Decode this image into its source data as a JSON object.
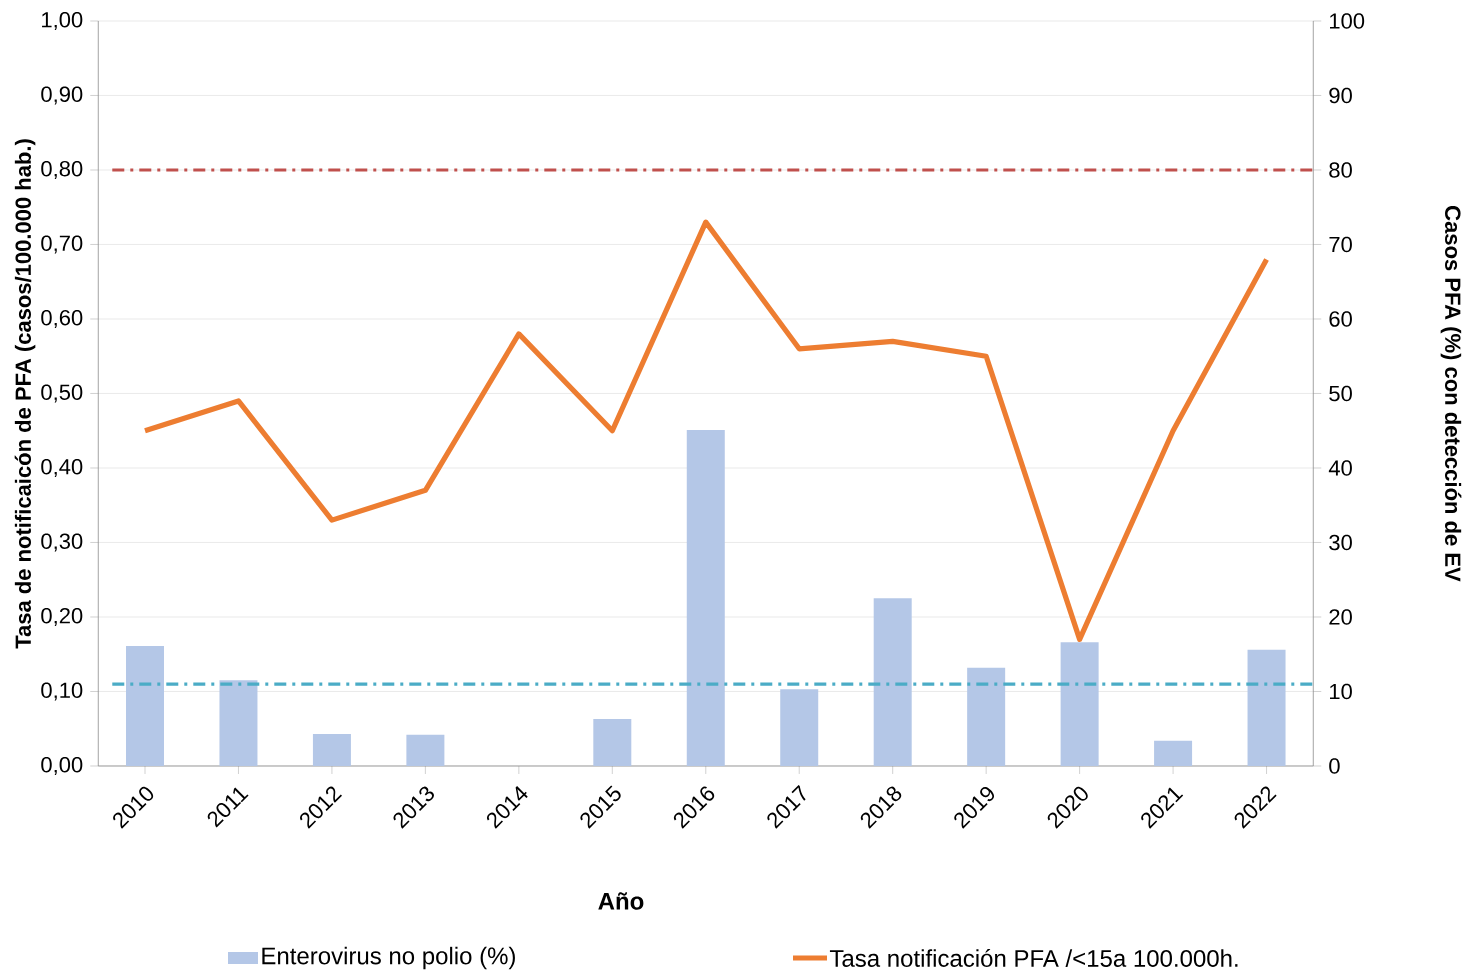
{
  "chart_data": {
    "type": "bar",
    "xlabel": "Año",
    "ylabel": "Tasa de  notificaicón de PFA (casos/100.000 hab.)",
    "y2label": "Casos PFA (%) con detección de EV",
    "categories": [
      "2010",
      "2011",
      "2012",
      "2013",
      "2014",
      "2015",
      "2016",
      "2017",
      "2018",
      "2019",
      "2020",
      "2021",
      "2022"
    ],
    "series": [
      {
        "name": "Enterovirus no polio (%)",
        "axis": "y2",
        "color": "#b4c7e7",
        "values": [
          16.1,
          11.5,
          4.3,
          4.2,
          0,
          6.3,
          45.1,
          10.3,
          22.5,
          13.2,
          16.6,
          3.4,
          15.6
        ]
      },
      {
        "name": "Tasa notificación PFA /<15a 100.000h.",
        "type": "line",
        "axis": "y",
        "color": "#ed7d31",
        "values": [
          0.45,
          0.49,
          0.33,
          0.37,
          0.58,
          0.45,
          0.73,
          0.56,
          0.57,
          0.55,
          0.17,
          0.45,
          0.68
        ]
      }
    ],
    "ylim": [
      0,
      1
    ],
    "yticks": [
      {
        "value": 0,
        "label": "0,00"
      },
      {
        "value": 0.1,
        "label": "0,10"
      },
      {
        "value": 0.2,
        "label": "0,20"
      },
      {
        "value": 0.3,
        "label": "0,30"
      },
      {
        "value": 0.4,
        "label": "0,40"
      },
      {
        "value": 0.5,
        "label": "0,50"
      },
      {
        "value": 0.6,
        "label": "0,60"
      },
      {
        "value": 0.7,
        "label": "0,70"
      },
      {
        "value": 0.8,
        "label": "0,80"
      },
      {
        "value": 0.9,
        "label": "0,90"
      },
      {
        "value": 1,
        "label": "1,00"
      }
    ],
    "y2lim": [
      0,
      100
    ],
    "y2ticks": [
      0,
      10,
      20,
      30,
      40,
      50,
      60,
      70,
      80,
      90,
      100
    ],
    "ref_lines": [
      {
        "axis": "y",
        "value": 0.8,
        "color": "#c0504d",
        "line_style": "dashdot"
      },
      {
        "axis": "y",
        "value": 0.11,
        "color": "#4bacc6",
        "line_style": "dashdot"
      }
    ],
    "grid": "y",
    "legend": "bottom"
  }
}
